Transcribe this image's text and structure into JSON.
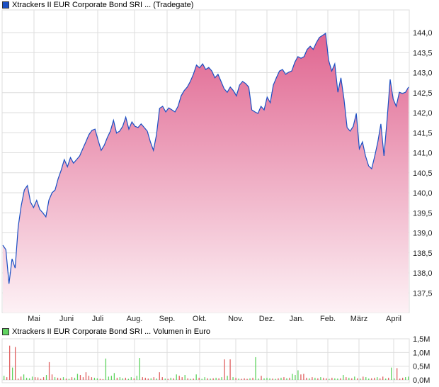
{
  "price_legend": {
    "label": "Xtrackers II EUR Corporate Bond SRI ... (Tradegate)",
    "color": "#1a4fc4"
  },
  "volume_legend": {
    "label": "Xtrackers II EUR Corporate Bond SRI ... Volumen in Euro",
    "color": "#5fd35f"
  },
  "chart_data": [
    {
      "type": "area",
      "title": "Xtrackers II EUR Corporate Bond SRI ... (Tradegate)",
      "x_tick_labels": [
        "Mai",
        "Juni",
        "Juli",
        "Aug.",
        "Sep.",
        "Okt.",
        "Nov.",
        "Dez.",
        "Jan.",
        "Feb.",
        "März",
        "April"
      ],
      "y_tick_labels": [
        "144,0",
        "143,5",
        "143,0",
        "142,5",
        "142,0",
        "141,5",
        "141,0",
        "140,5",
        "140,0",
        "139,5",
        "139,0",
        "138,5",
        "138,0",
        "137,5"
      ],
      "y_ticks": [
        144,
        143.5,
        143,
        142.5,
        142,
        141.5,
        141,
        140.5,
        140,
        139.5,
        139,
        138.5,
        138,
        137.5
      ],
      "ylim": [
        137.05,
        144.6
      ],
      "grid": true,
      "line_color": "#1a4fc4",
      "fill_color": "#e06590",
      "values": [
        138.69,
        138.58,
        137.73,
        138.35,
        138.12,
        139.15,
        139.68,
        140.07,
        140.18,
        139.77,
        139.63,
        139.81,
        139.59,
        139.5,
        139.4,
        139.82,
        140.0,
        140.07,
        140.35,
        140.57,
        140.83,
        140.65,
        140.88,
        140.74,
        140.83,
        140.92,
        141.1,
        141.27,
        141.45,
        141.56,
        141.59,
        141.31,
        141.06,
        141.19,
        141.38,
        141.54,
        141.81,
        141.49,
        141.54,
        141.66,
        141.89,
        141.59,
        141.77,
        141.66,
        141.63,
        141.72,
        141.63,
        141.54,
        141.27,
        141.06,
        141.45,
        142.11,
        142.16,
        142.02,
        142.12,
        142.07,
        142.02,
        142.16,
        142.42,
        142.55,
        142.64,
        142.78,
        142.96,
        143.19,
        143.12,
        143.22,
        143.08,
        143.13,
        143.04,
        142.87,
        142.96,
        142.78,
        142.6,
        142.51,
        142.64,
        142.55,
        142.42,
        142.69,
        142.78,
        142.73,
        142.64,
        142.07,
        142.02,
        141.98,
        142.16,
        142.07,
        142.39,
        142.25,
        142.69,
        142.87,
        143.04,
        143.08,
        142.96,
        143.01,
        143.04,
        143.26,
        143.4,
        143.36,
        143.4,
        143.58,
        143.66,
        143.58,
        143.75,
        143.88,
        143.93,
        143.98,
        143.31,
        143.04,
        143.22,
        142.51,
        142.87,
        142.34,
        141.63,
        141.54,
        141.66,
        141.98,
        141.1,
        141.27,
        140.92,
        140.67,
        140.6,
        140.92,
        141.27,
        141.72,
        140.92,
        141.81,
        142.83,
        142.34,
        142.16,
        142.51,
        142.48,
        142.51,
        142.64
      ]
    },
    {
      "type": "bar",
      "title": "Xtrackers II EUR Corporate Bond SRI ... Volumen in Euro",
      "y_tick_labels": [
        "1,5M",
        "1,0M",
        "0,5M",
        "0,0M"
      ],
      "y_ticks": [
        1.5,
        1.0,
        0.5,
        0.0
      ],
      "ylim": [
        0,
        1.5
      ],
      "unit": "M EUR",
      "up_color": "#5fd35f",
      "down_color": "#e06060",
      "values": [
        0.15,
        0.1,
        1.25,
        0.45,
        1.2,
        0.05,
        0.12,
        0.2,
        0.08,
        0.06,
        0.12,
        0.1,
        0.09,
        0.04,
        0.1,
        0.18,
        0.65,
        0.2,
        0.1,
        0.08,
        0.06,
        0.1,
        0.05,
        0.04,
        0.1,
        0.08,
        0.22,
        0.18,
        0.1,
        0.28,
        0.15,
        0.1,
        0.08,
        0.06,
        0.04,
        0.03,
        0.78,
        0.12,
        0.15,
        0.25,
        0.08,
        0.1,
        0.06,
        0.08,
        0.04,
        0.1,
        0.06,
        0.15,
        0.8,
        0.1,
        0.08,
        0.05,
        0.06,
        0.1,
        0.05,
        0.28,
        0.1,
        0.05,
        0.04,
        0.08,
        0.06,
        0.2,
        0.15,
        0.1,
        0.18,
        0.06,
        0.04,
        0.05,
        0.2,
        0.08,
        0.04,
        0.1,
        0.06,
        0.05,
        0.06,
        0.08,
        0.06,
        0.1,
        0.75,
        0.15,
        0.75,
        0.1,
        0.08,
        0.05,
        0.04,
        0.06,
        0.04,
        0.06,
        0.08,
        0.83,
        0.05,
        0.15,
        0.06,
        0.08,
        0.06,
        0.05,
        0.04,
        0.06,
        0.08,
        0.1,
        0.06,
        0.08,
        0.22,
        0.18,
        0.35,
        0.2,
        0.22,
        0.08,
        0.06,
        0.1,
        0.08,
        0.06,
        0.1,
        0.08,
        0.06,
        0.04,
        0.08,
        0.06,
        0.05,
        0.06,
        0.18,
        0.1,
        0.08,
        0.06,
        0.12,
        0.06,
        0.05,
        0.12,
        0.1,
        0.05,
        0.06,
        0.08,
        0.1,
        0.06,
        0.12,
        0.05,
        0.08,
        0.45,
        0.06,
        0.43,
        0.05,
        0.08,
        0.1,
        0.12
      ],
      "directions": "grrgrrrggggrrrrgrrgrrgrgrggrrrrrggrrggggrggrggrggrrrgrgrrgrgrgrrgrgrgrggrgrgrgrgrgrgrrrgrggrgggrgrgrgrgggrrrgrgrgrrgrggrgrgrgrgrggrrgrrgrggrrrggrgrr"
    }
  ]
}
